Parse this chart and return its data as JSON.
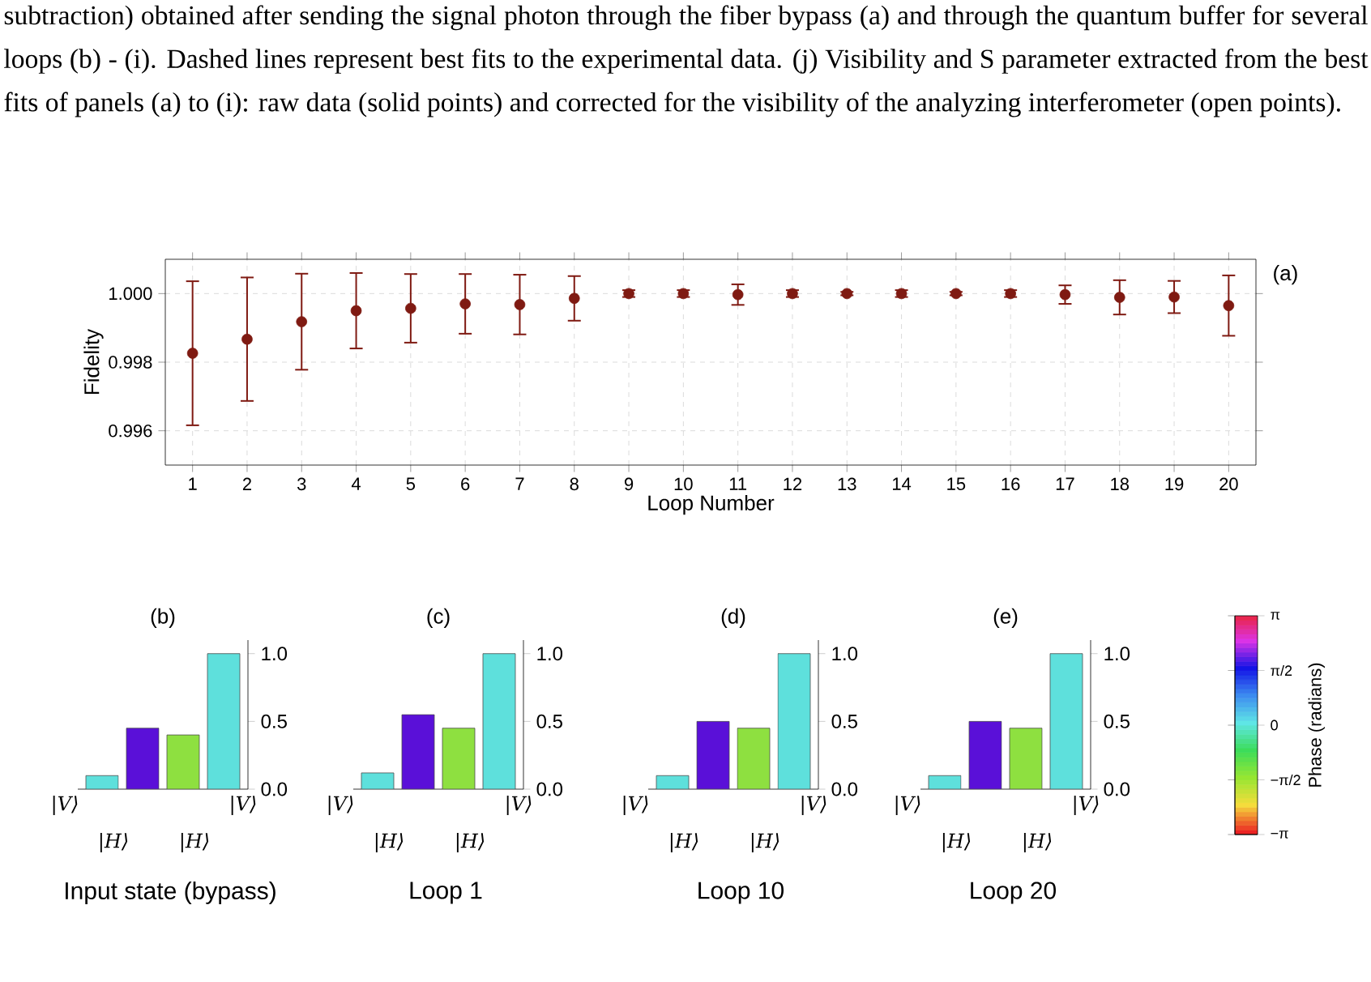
{
  "chart_data": [
    {
      "type": "scatter",
      "xlabel": "Loop Number",
      "ylabel": "Fidelity",
      "annotations": [
        "subtraction) obtained after sending the signal photon through the fiber bypass (a) and through the quantum buffer for several loops (b) - (i). Dashed lines represent best fits to the experimental data. (j) Visibility and S parameter extracted from the best fits of panels (a) to (i): raw data (solid points) and corrected for the visibility of the analyzing interferometer (open points).",
        "(a)"
      ],
      "x": [
        1,
        2,
        3,
        4,
        5,
        6,
        7,
        8,
        9,
        10,
        11,
        12,
        13,
        14,
        15,
        16,
        17,
        18,
        19,
        20
      ],
      "series": [
        {
          "color": "#7f1a12",
          "values": [
            0.99826,
            0.99867,
            0.99918,
            0.9995,
            0.99957,
            0.9997,
            0.99968,
            0.99986,
            1.0,
            1.0,
            0.99997,
            1.0,
            1.0,
            1.0,
            1.0,
            1.0,
            0.99997,
            0.99989,
            0.9999,
            0.99965
          ],
          "errors": [
            0.0021,
            0.0018,
            0.0014,
            0.0011,
            0.001,
            0.00087,
            0.00087,
            0.00065,
            0.0001,
            0.0001,
            0.0003,
            0.0001,
            5e-05,
            0.0001,
            5e-05,
            0.0001,
            0.00027,
            0.0005,
            0.00047,
            0.00088
          ]
        }
      ],
      "marker": "circle",
      "grid": true,
      "xlim": [
        0.5,
        20.5
      ],
      "xticks": [
        1,
        2,
        3,
        4,
        5,
        6,
        7,
        8,
        9,
        10,
        11,
        12,
        13,
        14,
        15,
        16,
        17,
        18,
        19,
        20
      ],
      "ylim": [
        0.995,
        1.001
      ],
      "yticks": [
        {
          "value": 0.996,
          "label": "0.996"
        },
        {
          "value": 0.998,
          "label": "0.998"
        },
        {
          "value": 1.0,
          "label": "1.000"
        }
      ]
    },
    {
      "type": "bar",
      "title": "(b)",
      "xlabel": "Input state (bypass)",
      "categories": [
        null,
        null,
        null,
        null
      ],
      "values": [
        0.1,
        0.45,
        0.4,
        1.0
      ],
      "colors": [
        "#5ee0dc",
        "#5a10d8",
        "#8ee040",
        "#5ee0dc"
      ],
      "ylim": [
        0,
        1.1
      ],
      "yticks": [
        {
          "value": 0,
          "label": "0.0"
        },
        {
          "value": 0.5,
          "label": "0.5"
        },
        {
          "value": 1.0,
          "label": "1.0"
        }
      ],
      "annotations": [
        "|V⟩",
        "|H⟩",
        "|H⟩",
        "|V⟩"
      ]
    },
    {
      "type": "bar",
      "title": "(c)",
      "xlabel": "Loop 1",
      "categories": [
        null,
        null,
        null,
        null
      ],
      "values": [
        0.12,
        0.55,
        0.45,
        1.0
      ],
      "colors": [
        "#5ee0dc",
        "#5a10d8",
        "#8ee040",
        "#5ee0dc"
      ],
      "ylim": [
        0,
        1.1
      ],
      "yticks": [
        {
          "value": 0,
          "label": "0.0"
        },
        {
          "value": 0.5,
          "label": "0.5"
        },
        {
          "value": 1.0,
          "label": "1.0"
        }
      ],
      "annotations": [
        "|V⟩",
        "|H⟩",
        "|H⟩",
        "|V⟩"
      ]
    },
    {
      "type": "bar",
      "title": "(d)",
      "xlabel": "Loop 10",
      "categories": [
        null,
        null,
        null,
        null
      ],
      "values": [
        0.1,
        0.5,
        0.45,
        1.0
      ],
      "colors": [
        "#5ee0dc",
        "#5a10d8",
        "#8ee040",
        "#5ee0dc"
      ],
      "ylim": [
        0,
        1.1
      ],
      "yticks": [
        {
          "value": 0,
          "label": "0.0"
        },
        {
          "value": 0.5,
          "label": "0.5"
        },
        {
          "value": 1.0,
          "label": "1.0"
        }
      ],
      "annotations": [
        "|V⟩",
        "|H⟩",
        "|H⟩",
        "|V⟩"
      ]
    },
    {
      "type": "bar",
      "title": "(e)",
      "xlabel": "Loop 20",
      "categories": [
        null,
        null,
        null,
        null
      ],
      "values": [
        0.1,
        0.5,
        0.45,
        1.0
      ],
      "colors": [
        "#5ee0dc",
        "#5a10d8",
        "#8ee040",
        "#5ee0dc"
      ],
      "ylim": [
        0,
        1.1
      ],
      "yticks": [
        {
          "value": 0,
          "label": "0.0"
        },
        {
          "value": 0.5,
          "label": "0.5"
        },
        {
          "value": 1.0,
          "label": "1.0"
        }
      ],
      "annotations": [
        "|V⟩",
        "|H⟩",
        "|H⟩",
        "|V⟩"
      ],
      "clabel": "Phase (radians)",
      "clim": [
        -3.14159,
        3.14159
      ],
      "cticks": [
        {
          "value": -3.14159,
          "label": "−π"
        },
        {
          "value": -1.5708,
          "label": "−π/2"
        },
        {
          "value": 0,
          "label": "0"
        },
        {
          "value": 1.5708,
          "label": "π/2"
        },
        {
          "value": 3.14159,
          "label": "π"
        }
      ]
    }
  ]
}
